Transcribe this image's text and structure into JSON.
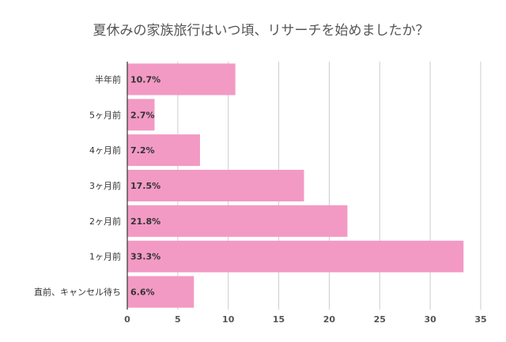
{
  "chart_data": {
    "type": "bar",
    "orientation": "horizontal",
    "title": "夏休みの家族旅行はいつ頃、リサーチを始めましたか？",
    "categories": [
      "半年前",
      "5ヶ月前",
      "4ヶ月前",
      "3ヶ月前",
      "2ヶ月前",
      "1ヶ月前",
      "直前、キャンセル待ち"
    ],
    "values": [
      10.7,
      2.7,
      7.2,
      17.5,
      21.8,
      33.3,
      6.6
    ],
    "data_labels": [
      "10.7%",
      "2.7%",
      "7.2%",
      "17.5%",
      "21.8%",
      "33.3%",
      "6.6%"
    ],
    "x_ticks": [
      "0",
      "5",
      "10",
      "15",
      "20",
      "25",
      "30",
      "35"
    ],
    "xlim": [
      0,
      35
    ],
    "grid": true,
    "legend": "none",
    "bar_color": "#f29ac4",
    "grid_color": "#cccccc"
  }
}
